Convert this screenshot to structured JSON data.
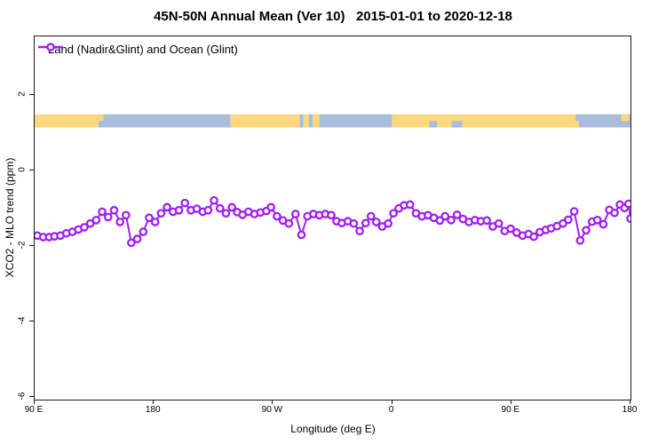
{
  "title": "45N-50N Annual Mean (Ver 10)   2015-01-01 to 2020-12-18",
  "legend": {
    "label": "Land (Nadir&Glint) and Ocean (Glint)"
  },
  "colors": {
    "series": "#A020F0",
    "marker_fill": "#ffffff",
    "land": "#FBD87F",
    "ocean": "#A9BDDB",
    "axis": "#1a1a1a"
  },
  "axes": {
    "x": {
      "label": "Longitude (deg E)",
      "lim": [
        90,
        540
      ],
      "ticks": [
        {
          "value": 90,
          "label": "90 E"
        },
        {
          "value": 180,
          "label": "180"
        },
        {
          "value": 270,
          "label": "90 W"
        },
        {
          "value": 360,
          "label": "0"
        },
        {
          "value": 450,
          "label": "90 E"
        },
        {
          "value": 540,
          "label": "180"
        }
      ]
    },
    "y": {
      "label": "XCO2 - MLO trend (ppm)",
      "lim": [
        -6.06,
        3.55
      ],
      "ticks": [
        {
          "value": 2,
          "label": "2"
        },
        {
          "value": 0,
          "label": "0"
        },
        {
          "value": -2,
          "label": "-2"
        },
        {
          "value": -4,
          "label": "-4"
        },
        {
          "value": -6,
          "label": "-6"
        }
      ]
    }
  },
  "map_strip": {
    "y_top_value": 1.49,
    "y_bottom_value": 1.14,
    "segments": [
      {
        "from": 90,
        "to": 138.2,
        "surface": "land",
        "band": "full"
      },
      {
        "from": 138.2,
        "to": 238,
        "surface": "ocean",
        "band": "full"
      },
      {
        "from": 138.2,
        "to": 142,
        "surface": "land",
        "band": "top"
      },
      {
        "from": 238,
        "to": 290.2,
        "surface": "land",
        "band": "full"
      },
      {
        "from": 290.2,
        "to": 293,
        "surface": "ocean",
        "band": "full"
      },
      {
        "from": 293,
        "to": 297,
        "surface": "land",
        "band": "full"
      },
      {
        "from": 297,
        "to": 300,
        "surface": "ocean",
        "band": "full"
      },
      {
        "from": 300,
        "to": 305,
        "surface": "land",
        "band": "full"
      },
      {
        "from": 305,
        "to": 359.9,
        "surface": "ocean",
        "band": "full"
      },
      {
        "from": 359.9,
        "to": 498.5,
        "surface": "land",
        "band": "full"
      },
      {
        "from": 388,
        "to": 394,
        "surface": "ocean",
        "band": "bottom"
      },
      {
        "from": 405,
        "to": 413,
        "surface": "ocean",
        "band": "bottom"
      },
      {
        "from": 498.5,
        "to": 540,
        "surface": "ocean",
        "band": "full"
      },
      {
        "from": 498.5,
        "to": 501,
        "surface": "land",
        "band": "bottom"
      },
      {
        "from": 533,
        "to": 539,
        "surface": "land",
        "band": "top"
      }
    ]
  },
  "chart_data": {
    "type": "line",
    "title": "45N-50N Annual Mean (Ver 10)   2015-01-01 to 2020-12-18",
    "xlabel": "Longitude (deg E)",
    "ylabel": "XCO2 - MLO trend (ppm)",
    "xlim": [
      90,
      540
    ],
    "ylim": [
      -6.06,
      3.55
    ],
    "grid": false,
    "legend_position": "top-left",
    "series": [
      {
        "name": "Land (Nadir&Glint) and Ocean (Glint)",
        "marker": "open-circle",
        "x": [
          92,
          96.5,
          101,
          105,
          109.5,
          114,
          118.5,
          123,
          127.5,
          132,
          136.5,
          141,
          145.5,
          150,
          154.5,
          159,
          163,
          167.5,
          172,
          176.5,
          181,
          185.5,
          190,
          194.5,
          199,
          203.5,
          208,
          212.5,
          217,
          221,
          225.5,
          230,
          234.5,
          239,
          243,
          247,
          251.5,
          256,
          260.5,
          265,
          268.5,
          273,
          277.5,
          282,
          287,
          291.5,
          296,
          300.5,
          305,
          309.5,
          314,
          318,
          322,
          326.5,
          331,
          335.5,
          340,
          344,
          348,
          352.5,
          357,
          361,
          365,
          369,
          373.5,
          378,
          382.5,
          387,
          391.5,
          396,
          400,
          404.5,
          409,
          413.5,
          418,
          422.5,
          427,
          431.5,
          436,
          440.5,
          445,
          449.5,
          454,
          458.5,
          463,
          467,
          471.5,
          476,
          480,
          484.5,
          489,
          493,
          497.5,
          502,
          506.5,
          511,
          515,
          519.5,
          524,
          528,
          532,
          535.5,
          538.5,
          540
        ],
        "y": [
          -1.72,
          -1.76,
          -1.76,
          -1.74,
          -1.72,
          -1.66,
          -1.62,
          -1.56,
          -1.5,
          -1.4,
          -1.31,
          -1.09,
          -1.23,
          -1.05,
          -1.36,
          -1.18,
          -1.91,
          -1.81,
          -1.62,
          -1.25,
          -1.36,
          -1.13,
          -0.97,
          -1.09,
          -1.05,
          -0.86,
          -1.05,
          -1.01,
          -1.09,
          -1.05,
          -0.79,
          -1.0,
          -1.13,
          -0.97,
          -1.1,
          -1.17,
          -1.09,
          -1.15,
          -1.11,
          -1.07,
          -0.97,
          -1.21,
          -1.32,
          -1.4,
          -1.15,
          -1.7,
          -1.21,
          -1.15,
          -1.18,
          -1.15,
          -1.18,
          -1.34,
          -1.39,
          -1.34,
          -1.4,
          -1.6,
          -1.39,
          -1.21,
          -1.36,
          -1.48,
          -1.4,
          -1.13,
          -1.0,
          -0.92,
          -0.9,
          -1.13,
          -1.21,
          -1.18,
          -1.25,
          -1.32,
          -1.21,
          -1.31,
          -1.17,
          -1.28,
          -1.36,
          -1.31,
          -1.34,
          -1.32,
          -1.48,
          -1.4,
          -1.6,
          -1.54,
          -1.64,
          -1.72,
          -1.68,
          -1.75,
          -1.63,
          -1.57,
          -1.53,
          -1.47,
          -1.4,
          -1.3,
          -1.08,
          -1.85,
          -1.58,
          -1.35,
          -1.31,
          -1.42,
          -1.04,
          -1.12,
          -0.9,
          -0.99,
          -0.88,
          -1.27
        ]
      }
    ]
  }
}
